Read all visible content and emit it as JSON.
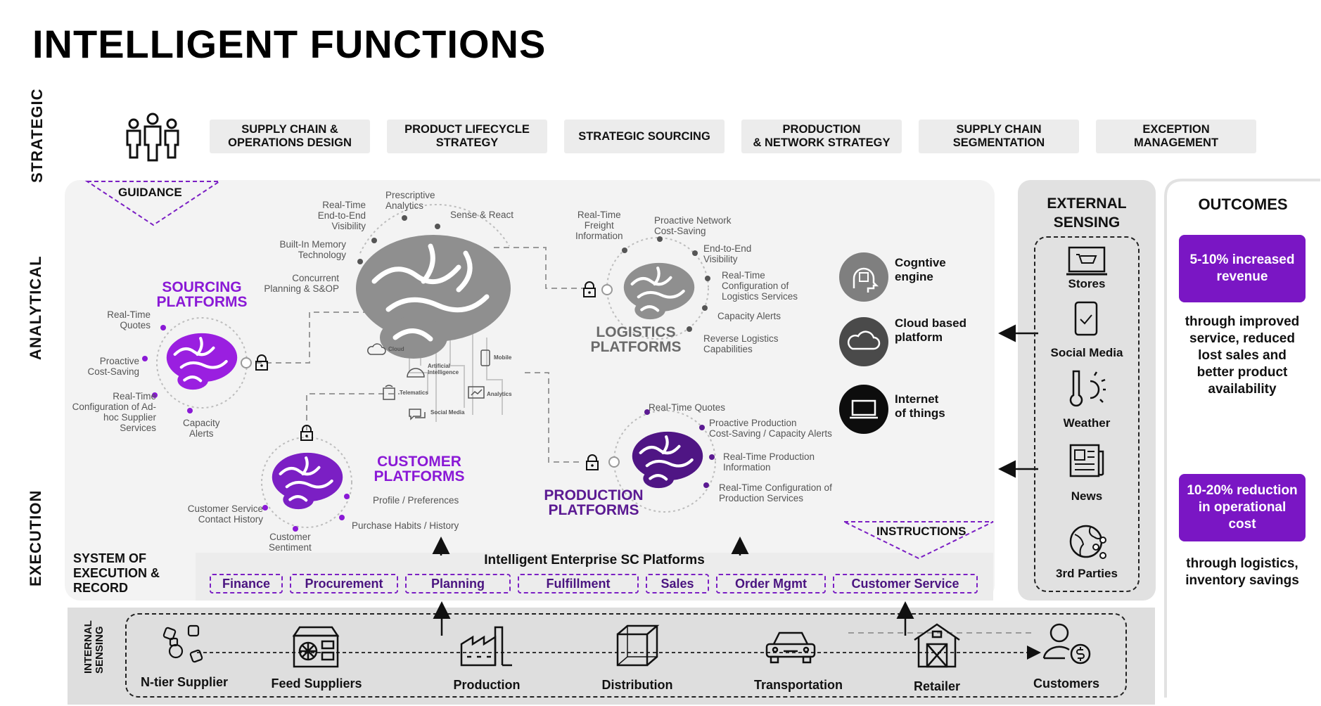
{
  "title": "INTELLIGENT FUNCTIONS",
  "side_labels": {
    "strategic": "STRATEGIC",
    "analytical": "ANALYTICAL",
    "execution": "EXECUTION"
  },
  "strategic_items": [
    "SUPPLY CHAIN &\nOPERATIONS DESIGN",
    "PRODUCT LIFECYCLE\nSTRATEGY",
    "STRATEGIC SOURCING",
    "PRODUCTION\n& NETWORK STRATEGY",
    "SUPPLY CHAIN\nSEGMENTATION",
    "EXCEPTION\nMANAGEMENT"
  ],
  "guidance": "GUIDANCE",
  "instructions": "INSTRUCTIONS",
  "central_labels": {
    "realtime_visibility": "Real-Time\nEnd-to-End\nVisibility",
    "prescriptive": "Prescriptive\nAnalytics",
    "sense_react": "Sense & React",
    "memory": "Built-In Memory\nTechnology",
    "planning": "Concurrent\nPlanning & S&OP"
  },
  "tech_icons": {
    "cloud": "Cloud",
    "ai": "Artificial\nIntelligence",
    "mobile": "Mobile",
    "telematics": "Telematics",
    "analytics": "Analytics",
    "social": "Social Media"
  },
  "sourcing": {
    "title": "SOURCING\nPLATFORMS",
    "labels": [
      "Real-Time\nQuotes",
      "Proactive\nCost-Saving",
      "Real-Time\nConfiguration of Ad-\nhoc Supplier\nServices",
      "Capacity\nAlerts"
    ]
  },
  "customer": {
    "title": "CUSTOMER\nPLATFORMS",
    "labels": [
      "Profile / Preferences",
      "Purchase Habits / History",
      "Customer\nSentiment",
      "Customer Service\nContact History"
    ]
  },
  "logistics": {
    "title": "LOGISTICS\nPLATFORMS",
    "labels": [
      "Real-Time\nFreight\nInformation",
      "Proactive Network\nCost-Saving",
      "End-to-End\nVisibility",
      "Real-Time\nConfiguration of\nLogistics Services",
      "Capacity Alerts",
      "Reverse Logistics\nCapabilities"
    ]
  },
  "production": {
    "title": "PRODUCTION\nPLATFORMS",
    "labels": [
      "Real-Time Quotes",
      "Proactive Production\nCost-Saving / Capacity Alerts",
      "Real-Time Production\nInformation",
      "Real-Time Configuration of\nProduction Services"
    ]
  },
  "right_tags": [
    "Cogntive\nengine",
    "Cloud based\nplatform",
    "Internet\nof things"
  ],
  "external": {
    "title": "EXTERNAL\nSENSING",
    "items": [
      "Stores",
      "Social Media",
      "Weather",
      "News",
      "3rd Parties"
    ]
  },
  "outcomes": {
    "title": "OUTCOMES",
    "badge1": "5-10% increased\nrevenue",
    "text1": "through improved\nservice, reduced\nlost sales and\nbetter product\navailability",
    "badge2": "10-20% reduction\nin operational\ncost",
    "text2": "through logistics,\ninventory savings"
  },
  "ser": {
    "title": "SYSTEM OF\nEXECUTION &\nRECORD",
    "platform_title": "Intelligent Enterprise SC Platforms",
    "chips": [
      "Finance",
      "Procurement",
      "Planning",
      "Fulfillment",
      "Sales",
      "Order Mgmt",
      "Customer Service"
    ]
  },
  "internal": {
    "side": "INTERNAL\nSENSING",
    "items": [
      "N-tier Supplier",
      "Feed Suppliers",
      "Production",
      "Distribution",
      "Transportation",
      "Retailer",
      "Customers"
    ]
  },
  "colors": {
    "accent": "#8a19d6",
    "dark_purple": "#5b1a92",
    "grey_brain": "#8f8f8f",
    "badge": "#7a16c4"
  }
}
